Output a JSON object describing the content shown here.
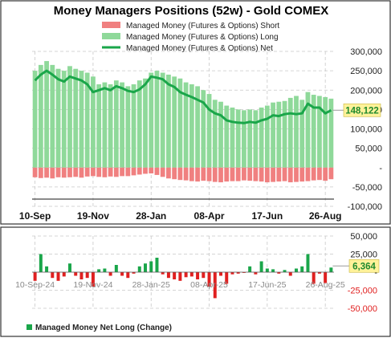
{
  "colors": {
    "long": "#8fd99a",
    "short": "#f08080",
    "net": "#1aa64a",
    "pos": "#1aa64a",
    "neg": "#e02020",
    "callout_bg": "#fff29a",
    "callout_text": "#1f8a2e",
    "grid": "#c8c8c8"
  },
  "chart_data": [
    {
      "type": "bar",
      "title": "Money Managers Positions (52w) - Gold COMEX",
      "legend": [
        {
          "key": "short",
          "label": "Managed Money (Futures & Options)  Short",
          "marker": "bar"
        },
        {
          "key": "long",
          "label": "Managed Money (Futures & Options)  Long",
          "marker": "bar"
        },
        {
          "key": "net",
          "label": "Managed Money (Futures & Options)  Net",
          "marker": "line"
        }
      ],
      "legend_position": "top",
      "x_tick_labels": [
        "10-Sep",
        "19-Nov",
        "28-Jan",
        "08-Apr",
        "17-Jun",
        "26-Aug"
      ],
      "x_tick_index": [
        0,
        10,
        20,
        30,
        40,
        50
      ],
      "ylim": [
        -100000,
        300000
      ],
      "y_ticks": [
        -100000,
        -50000,
        0,
        50000,
        100000,
        150000,
        200000,
        250000,
        300000
      ],
      "y_tick_labels": [
        "-100,000",
        "-50,000",
        "-",
        "50,000",
        "100,000",
        "150,000",
        "200,000",
        "250,000",
        "300,000"
      ],
      "grid": true,
      "series": [
        {
          "name": "Managed Money (Futures & Options)  Long",
          "key": "long",
          "values": [
            250000,
            265000,
            275000,
            265000,
            255000,
            250000,
            262000,
            255000,
            250000,
            245000,
            235000,
            215000,
            220000,
            215000,
            225000,
            220000,
            210000,
            215000,
            225000,
            230000,
            245000,
            250000,
            245000,
            240000,
            235000,
            230000,
            220000,
            215000,
            210000,
            200000,
            190000,
            175000,
            170000,
            160000,
            155000,
            150000,
            148000,
            150000,
            148000,
            155000,
            160000,
            168000,
            170000,
            172000,
            180000,
            185000,
            175000,
            195000,
            188000,
            185000,
            182000,
            178000
          ]
        },
        {
          "name": "Managed Money (Futures & Options)  Short",
          "key": "short",
          "values": [
            -25000,
            -27000,
            -26000,
            -28000,
            -25000,
            -26000,
            -25000,
            -24000,
            -26000,
            -23000,
            -22000,
            -24000,
            -25000,
            -23000,
            -24000,
            -22000,
            -22000,
            -20000,
            -18000,
            -16000,
            -15000,
            -19000,
            -24000,
            -28000,
            -30000,
            -32000,
            -33000,
            -35000,
            -36000,
            -34000,
            -35000,
            -37000,
            -38000,
            -36000,
            -35000,
            -35000,
            -33000,
            -34000,
            -35000,
            -36000,
            -38000,
            -37000,
            -36000,
            -35000,
            -38000,
            -37000,
            -36000,
            -35000,
            -33000,
            -32000,
            -34000,
            -30000
          ]
        },
        {
          "name": "Managed Money (Futures & Options)  Net",
          "key": "net",
          "values": [
            225000,
            240000,
            250000,
            240000,
            228000,
            222000,
            235000,
            230000,
            225000,
            215000,
            195000,
            200000,
            205000,
            200000,
            210000,
            205000,
            198000,
            195000,
            202000,
            215000,
            235000,
            232000,
            228000,
            215000,
            208000,
            195000,
            188000,
            182000,
            175000,
            168000,
            150000,
            140000,
            135000,
            122000,
            118000,
            116000,
            115000,
            118000,
            116000,
            122000,
            126000,
            135000,
            133000,
            138000,
            140000,
            138000,
            140000,
            165000,
            155000,
            155000,
            140000,
            148122
          ]
        }
      ],
      "callout": {
        "series": "net",
        "text": "148,122"
      }
    },
    {
      "type": "bar",
      "title": "",
      "legend": [
        {
          "label": "Managed Money  Net Long (Change)",
          "marker": "square"
        }
      ],
      "legend_position": "bottom-left",
      "x_tick_labels": [
        "10-Sep-24",
        "19-Nov-24",
        "28-Jan-25",
        "08-Apr-25",
        "17-Jun-25",
        "26-Aug-25"
      ],
      "x_tick_index": [
        0,
        10,
        20,
        30,
        40,
        50
      ],
      "ylim": [
        -50000,
        50000
      ],
      "y_ticks": [
        -50000,
        -25000,
        0,
        25000,
        50000
      ],
      "y_tick_labels": [
        "-50,000",
        "-25,000",
        "-",
        "25,000",
        "50,000"
      ],
      "grid": true,
      "series": [
        {
          "name": "Managed Money  Net Long (Change)",
          "key": "change",
          "values": [
            -12000,
            25000,
            8000,
            -8000,
            -12000,
            -6000,
            12000,
            -5000,
            -10000,
            -8000,
            -20000,
            4000,
            5000,
            -5000,
            10000,
            -5000,
            -8000,
            -2000,
            8000,
            12000,
            15000,
            20000,
            -3000,
            -8000,
            -10000,
            -12000,
            -7000,
            -6000,
            -10000,
            -8000,
            -20000,
            -36000,
            -5000,
            -16000,
            -3000,
            -2000,
            -1000,
            8000,
            -3000,
            15000,
            5000,
            4000,
            -2000,
            3000,
            -5000,
            5000,
            8000,
            25000,
            -16000,
            -2000,
            -15000,
            6364
          ]
        }
      ],
      "callout": {
        "series": "change",
        "text": "6,364"
      }
    }
  ]
}
